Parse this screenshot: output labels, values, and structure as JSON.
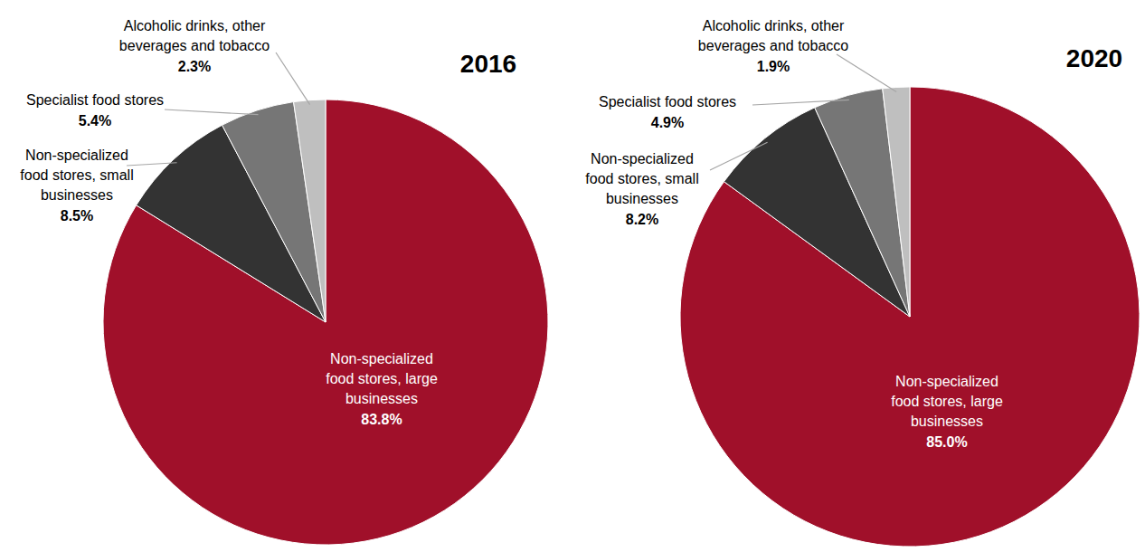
{
  "chart_data": [
    {
      "type": "pie",
      "title": "2016",
      "categories": [
        "Non-specialized food stores, large businesses",
        "Non-specialized food stores, small businesses",
        "Specialist food stores",
        "Alcoholic drinks, other beverages and tobacco"
      ],
      "values": [
        83.8,
        8.5,
        5.4,
        2.3
      ],
      "value_labels": [
        "83.8%",
        "8.5%",
        "5.4%",
        "2.3%"
      ],
      "colors": [
        "#a0102a",
        "#333333",
        "#767676",
        "#bfbfbf"
      ],
      "data_labels": true
    },
    {
      "type": "pie",
      "title": "2020",
      "categories": [
        "Non-specialized food stores, large businesses",
        "Non-specialized food stores, small businesses",
        "Specialist food stores",
        "Alcoholic drinks, other beverages and tobacco"
      ],
      "values": [
        85.0,
        8.2,
        4.9,
        1.9
      ],
      "value_labels": [
        "85.0%",
        "8.2%",
        "4.9%",
        "1.9%"
      ],
      "colors": [
        "#a0102a",
        "#333333",
        "#767676",
        "#bfbfbf"
      ],
      "data_labels": true
    }
  ]
}
